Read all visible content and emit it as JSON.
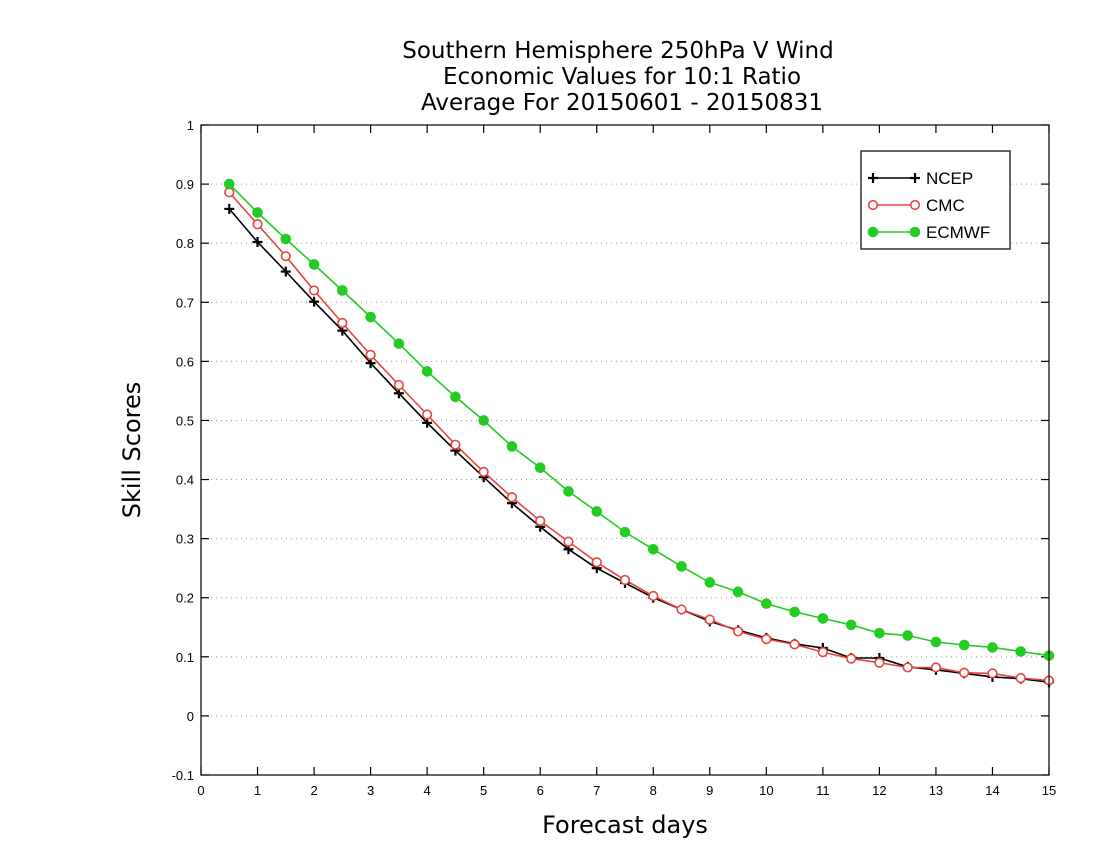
{
  "chart_data": {
    "type": "line",
    "title": [
      "Southern Hemisphere 250hPa V Wind",
      "Economic Values for 10:1 Ratio",
      "Average For 20150601 - 20150831"
    ],
    "xlabel": "Forecast days",
    "ylabel": "Skill Scores",
    "xlim": [
      0,
      15
    ],
    "ylim": [
      -0.1,
      1
    ],
    "xticks": [
      0,
      1,
      2,
      3,
      4,
      5,
      6,
      7,
      8,
      9,
      10,
      11,
      12,
      13,
      14,
      15
    ],
    "yticks": [
      -0.1,
      0,
      0.1,
      0.2,
      0.3,
      0.4,
      0.5,
      0.6,
      0.7,
      0.8,
      0.9,
      1
    ],
    "ytick_labels": [
      "-0.1",
      "0",
      "0.1",
      "0.2",
      "0.3",
      "0.4",
      "0.5",
      "0.6",
      "0.7",
      "0.8",
      "0.9",
      "1"
    ],
    "grid": "horizontal dotted",
    "legend_position": "top-right",
    "x": [
      0.5,
      1,
      1.5,
      2,
      2.5,
      3,
      3.5,
      4,
      4.5,
      5,
      5.5,
      6,
      6.5,
      7,
      7.5,
      8,
      8.5,
      9,
      9.5,
      10,
      10.5,
      11,
      11.5,
      12,
      12.5,
      13,
      13.5,
      14,
      14.5,
      15
    ],
    "series": [
      {
        "name": "NCEP",
        "color": "#000000",
        "marker": "plus",
        "values": [
          0.858,
          0.802,
          0.752,
          0.701,
          0.652,
          0.597,
          0.546,
          0.496,
          0.449,
          0.404,
          0.36,
          0.32,
          0.282,
          0.25,
          0.225,
          0.2,
          0.18,
          0.16,
          0.145,
          0.132,
          0.122,
          0.115,
          0.098,
          0.098,
          0.083,
          0.078,
          0.072,
          0.066,
          0.063,
          0.057
        ]
      },
      {
        "name": "CMC",
        "color": "#e8443f",
        "marker": "open-circle",
        "values": [
          0.886,
          0.832,
          0.778,
          0.72,
          0.665,
          0.611,
          0.56,
          0.51,
          0.459,
          0.413,
          0.37,
          0.33,
          0.295,
          0.26,
          0.23,
          0.203,
          0.18,
          0.163,
          0.143,
          0.13,
          0.121,
          0.108,
          0.097,
          0.09,
          0.082,
          0.082,
          0.073,
          0.072,
          0.064,
          0.06
        ]
      },
      {
        "name": "ECMWF",
        "color": "#22cc22",
        "marker": "filled-circle",
        "values": [
          0.9,
          0.852,
          0.807,
          0.764,
          0.72,
          0.675,
          0.63,
          0.583,
          0.54,
          0.5,
          0.456,
          0.42,
          0.38,
          0.346,
          0.311,
          0.282,
          0.253,
          0.226,
          0.21,
          0.19,
          0.176,
          0.165,
          0.154,
          0.14,
          0.136,
          0.125,
          0.12,
          0.116,
          0.109,
          0.102
        ]
      }
    ]
  }
}
